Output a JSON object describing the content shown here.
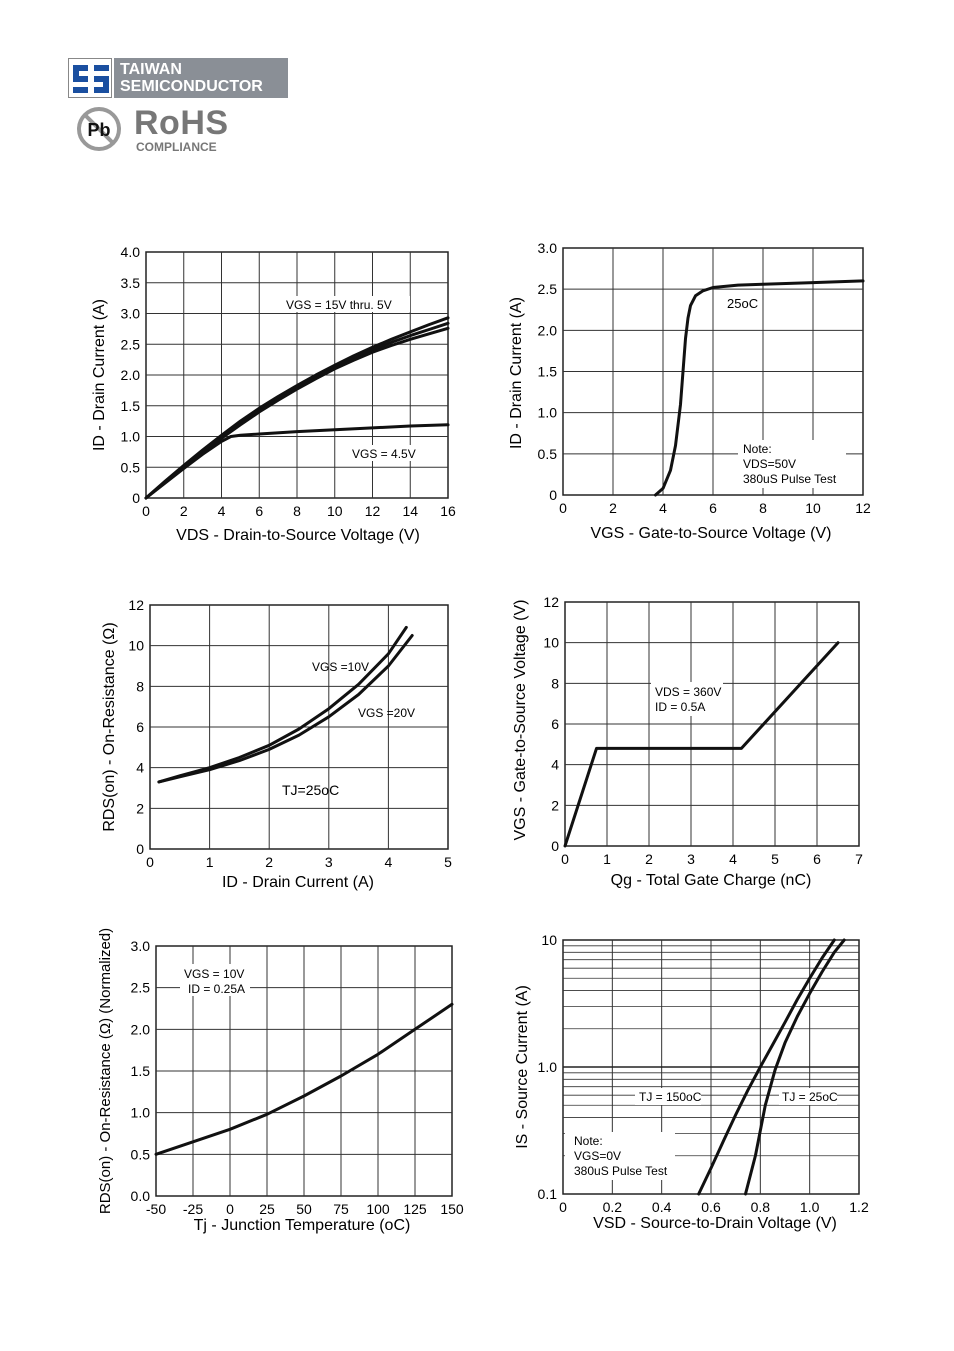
{
  "header": {
    "company_line1": "TAIWAN",
    "company_line2": "SEMICONDUCTOR",
    "rohs_badge": "Pb",
    "rohs_title": "RoHS",
    "rohs_sub": "COMPLIANCE"
  },
  "chart_data": [
    {
      "type": "line",
      "xlabel": "VDS - Drain-to-Source Voltage (V)",
      "ylabel": "ID - Drain Current (A)",
      "xlim": [
        0,
        16
      ],
      "ylim": [
        0,
        4.0
      ],
      "xticks": [
        "0",
        "2",
        "4",
        "6",
        "8",
        "10",
        "12",
        "14",
        "16"
      ],
      "yticks": [
        "0",
        "0.5",
        "1.0",
        "1.5",
        "2.0",
        "2.5",
        "3.0",
        "3.5",
        "4.0"
      ],
      "grid": true,
      "annotations": [
        "VGS = 15V thru. 5V",
        "VGS = 4.5V"
      ],
      "series": [
        {
          "x": [
            0,
            1,
            2,
            3,
            4,
            5,
            6,
            7,
            8,
            9,
            10,
            11,
            12,
            13,
            14,
            15,
            16
          ],
          "y": [
            0,
            0.27,
            0.53,
            0.78,
            1.02,
            1.25,
            1.46,
            1.65,
            1.83,
            2.0,
            2.16,
            2.31,
            2.45,
            2.58,
            2.7,
            2.82,
            2.93
          ]
        },
        {
          "x": [
            0,
            1,
            2,
            3,
            4,
            5,
            6,
            7,
            8,
            9,
            10,
            11,
            12,
            13,
            14,
            15,
            16
          ],
          "y": [
            0,
            0.26,
            0.52,
            0.77,
            1.0,
            1.22,
            1.43,
            1.62,
            1.8,
            1.97,
            2.13,
            2.28,
            2.41,
            2.53,
            2.64,
            2.74,
            2.84
          ]
        },
        {
          "x": [
            0,
            1,
            2,
            3,
            4,
            5,
            6,
            7,
            8,
            9,
            10,
            11,
            12,
            13,
            14,
            15,
            16
          ],
          "y": [
            0,
            0.25,
            0.5,
            0.74,
            0.97,
            1.19,
            1.4,
            1.59,
            1.77,
            1.94,
            2.1,
            2.24,
            2.37,
            2.48,
            2.58,
            2.67,
            2.76
          ]
        },
        {
          "x": [
            0,
            1,
            2,
            3,
            4,
            4.5,
            5,
            6,
            8,
            10,
            12,
            14,
            16
          ],
          "y": [
            0,
            0.24,
            0.48,
            0.71,
            0.92,
            1.0,
            1.02,
            1.04,
            1.08,
            1.11,
            1.14,
            1.17,
            1.19
          ]
        }
      ]
    },
    {
      "type": "line",
      "xlabel": "VGS - Gate-to-Source Voltage (V)",
      "ylabel": "ID - Drain Current (A)",
      "xlim": [
        0,
        12
      ],
      "ylim": [
        0,
        3.0
      ],
      "xticks": [
        "0",
        "2",
        "4",
        "6",
        "8",
        "10",
        "12"
      ],
      "yticks": [
        "0",
        "0.5",
        "1.0",
        "1.5",
        "2.0",
        "2.5",
        "3.0"
      ],
      "grid": true,
      "annotations": [
        "25oC",
        "Note:",
        "VDS=50V",
        "380uS Pulse Test"
      ],
      "series": [
        {
          "x": [
            3.7,
            4.0,
            4.3,
            4.5,
            4.7,
            4.8,
            4.9,
            5.0,
            5.1,
            5.3,
            5.6,
            6.0,
            7.0,
            8.0,
            10.0,
            12.0
          ],
          "y": [
            0,
            0.08,
            0.3,
            0.6,
            1.1,
            1.5,
            1.9,
            2.15,
            2.3,
            2.42,
            2.48,
            2.52,
            2.55,
            2.56,
            2.58,
            2.6
          ]
        }
      ]
    },
    {
      "type": "line",
      "xlabel": "ID - Drain Current (A)",
      "ylabel": "RDS(on) - On-Resistance (Ω)",
      "xlim": [
        0,
        5
      ],
      "ylim": [
        0,
        12
      ],
      "xticks": [
        "0",
        "1",
        "2",
        "3",
        "4",
        "5"
      ],
      "yticks": [
        "0",
        "2",
        "4",
        "6",
        "8",
        "10",
        "12"
      ],
      "grid": true,
      "annotations": [
        "VGS =10V",
        "VGS =20V",
        "TJ=25oC"
      ],
      "series": [
        {
          "x": [
            0.15,
            0.5,
            1.0,
            1.5,
            2.0,
            2.5,
            3.0,
            3.5,
            4.0,
            4.3
          ],
          "y": [
            3.3,
            3.6,
            4.0,
            4.5,
            5.1,
            5.9,
            6.9,
            8.1,
            9.6,
            10.9
          ]
        },
        {
          "x": [
            0.15,
            0.5,
            1.0,
            1.5,
            2.0,
            2.5,
            3.0,
            3.5,
            4.0,
            4.4
          ],
          "y": [
            3.3,
            3.55,
            3.9,
            4.35,
            4.9,
            5.6,
            6.5,
            7.6,
            9.0,
            10.5
          ]
        }
      ]
    },
    {
      "type": "line",
      "xlabel": "Qg - Total Gate Charge (nC)",
      "ylabel": "VGS - Gate-to-Source Voltage (V)",
      "xlim": [
        0,
        7
      ],
      "ylim": [
        0,
        12
      ],
      "xticks": [
        "0",
        "1",
        "2",
        "3",
        "4",
        "5",
        "6",
        "7"
      ],
      "yticks": [
        "0",
        "2",
        "4",
        "6",
        "8",
        "10",
        "12"
      ],
      "grid": true,
      "annotations": [
        "VDS = 360V",
        "ID = 0.5A"
      ],
      "series": [
        {
          "x": [
            0,
            0.75,
            4.2,
            6.5
          ],
          "y": [
            0,
            4.8,
            4.8,
            10
          ]
        }
      ]
    },
    {
      "type": "line",
      "xlabel": "Tj - Junction Temperature (oC)",
      "ylabel": "RDS(on) - On-Resistance (Ω) (Normalized)",
      "xlim": [
        -50,
        150
      ],
      "ylim": [
        0,
        3.0
      ],
      "xticks": [
        "-50",
        "-25",
        "0",
        "25",
        "50",
        "75",
        "100",
        "125",
        "150"
      ],
      "yticks": [
        "0.0",
        "0.5",
        "1.0",
        "1.5",
        "2.0",
        "2.5",
        "3.0"
      ],
      "grid": true,
      "annotations": [
        "VGS = 10V",
        "ID = 0.25A"
      ],
      "series": [
        {
          "x": [
            -50,
            -25,
            0,
            25,
            50,
            75,
            100,
            125,
            150
          ],
          "y": [
            0.5,
            0.65,
            0.8,
            0.98,
            1.2,
            1.44,
            1.7,
            2.0,
            2.3
          ]
        }
      ]
    },
    {
      "type": "line",
      "xlabel": "VSD - Source-to-Drain Voltage (V)",
      "ylabel": "IS - Source Current (A)",
      "xlim": [
        0,
        1.2
      ],
      "ylim": [
        0.1,
        10
      ],
      "yscale": "log",
      "xticks": [
        "0",
        "0.2",
        "0.4",
        "0.6",
        "0.8",
        "1.0",
        "1.2"
      ],
      "yticks": [
        "0.1",
        "1.0",
        "10"
      ],
      "grid": true,
      "annotations": [
        "TJ = 150oC",
        "TJ = 25oC",
        "Note:",
        "VGS=0V",
        "380uS Pulse Test"
      ],
      "series": [
        {
          "x": [
            0.55,
            0.6,
            0.65,
            0.7,
            0.75,
            0.8,
            0.85,
            0.9,
            0.95,
            1.0,
            1.05,
            1.1
          ],
          "y": [
            0.1,
            0.16,
            0.26,
            0.42,
            0.66,
            1.0,
            1.5,
            2.25,
            3.4,
            5.0,
            7.2,
            10.0
          ]
        },
        {
          "x": [
            0.74,
            0.78,
            0.82,
            0.86,
            0.9,
            0.95,
            1.0,
            1.05,
            1.1,
            1.14
          ],
          "y": [
            0.1,
            0.2,
            0.5,
            0.95,
            1.55,
            2.5,
            3.8,
            5.6,
            8.0,
            10.0
          ]
        }
      ]
    }
  ]
}
